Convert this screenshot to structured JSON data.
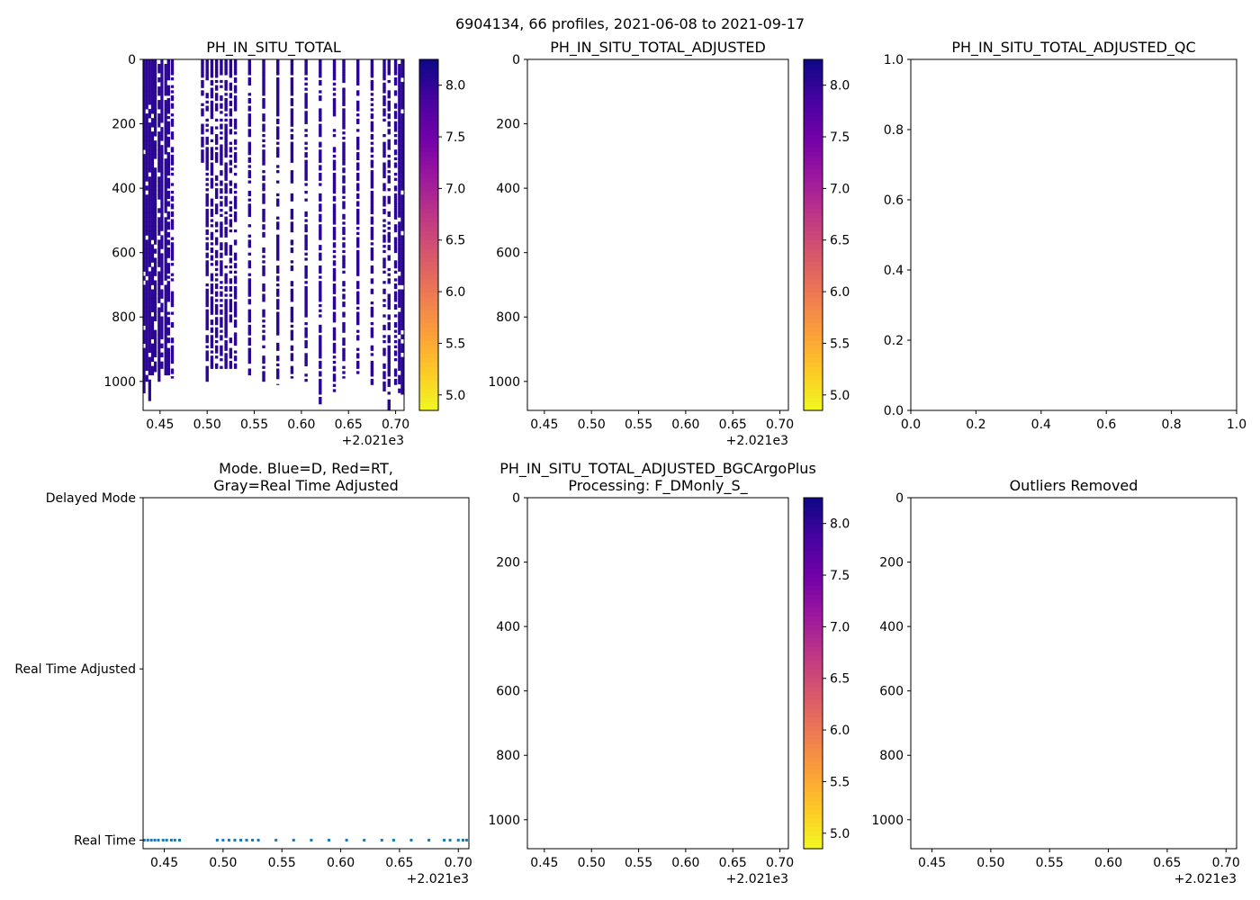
{
  "suptitle": "6904134, 66 profiles, 2021-06-08 to 2021-09-17",
  "colors": {
    "mode_points": "#1f77b4",
    "plasma_stops": [
      "#f0f921",
      "#fdca26",
      "#fb9f3a",
      "#ed7953",
      "#d8576b",
      "#bd3786",
      "#9c179e",
      "#7201a8",
      "#46039f",
      "#0d0887"
    ]
  },
  "chart_data": [
    {
      "id": "panel-ph-raw",
      "type": "heatmap",
      "title": "PH_IN_SITU_TOTAL",
      "xlim": [
        2021.432,
        2021.709
      ],
      "ylim": [
        1090,
        0
      ],
      "xticks": [
        "0.45",
        "0.50",
        "0.55",
        "0.60",
        "0.65",
        "0.70"
      ],
      "xtick_values": [
        2021.45,
        2021.5,
        2021.55,
        2021.6,
        2021.65,
        2021.7
      ],
      "yticks": [
        "0",
        "200",
        "400",
        "600",
        "800",
        "1000"
      ],
      "ytick_values": [
        0,
        200,
        400,
        600,
        800,
        1000
      ],
      "offset_label": "+2.021e3",
      "colorbar": {
        "vmin": 4.85,
        "vmax": 8.25,
        "ticks": [
          "5.0",
          "5.5",
          "6.0",
          "6.5",
          "7.0",
          "7.5",
          "8.0"
        ],
        "tick_values": [
          5.0,
          5.5,
          6.0,
          6.5,
          7.0,
          7.5,
          8.0
        ]
      },
      "profiles": [
        {
          "t": 2021.433,
          "max_depth": 1050,
          "value": 8.05,
          "dense": true
        },
        {
          "t": 2021.436,
          "max_depth": 1000,
          "value": 8.05,
          "dense": true
        },
        {
          "t": 2021.439,
          "max_depth": 1060,
          "value": 8.05,
          "dense": true
        },
        {
          "t": 2021.442,
          "max_depth": 980,
          "value": 8.05,
          "dense": true
        },
        {
          "t": 2021.445,
          "max_depth": 970,
          "value": 8.05,
          "dense": true
        },
        {
          "t": 2021.449,
          "max_depth": 1000,
          "value": 8.05,
          "dense": true
        },
        {
          "t": 2021.452,
          "max_depth": 960,
          "value": 8.05,
          "dense": true
        },
        {
          "t": 2021.456,
          "max_depth": 980,
          "value": 8.05,
          "dense": true
        },
        {
          "t": 2021.459,
          "max_depth": 980,
          "value": 8.05,
          "dense": false
        },
        {
          "t": 2021.463,
          "max_depth": 990,
          "value": 8.05,
          "dense": false
        },
        {
          "t": 2021.495,
          "max_depth": 340,
          "value": 8.05,
          "dense": false
        },
        {
          "t": 2021.5,
          "max_depth": 1000,
          "value": 8.05,
          "dense": false
        },
        {
          "t": 2021.505,
          "max_depth": 960,
          "value": 8.05,
          "dense": false
        },
        {
          "t": 2021.51,
          "max_depth": 960,
          "value": 8.05,
          "dense": false
        },
        {
          "t": 2021.515,
          "max_depth": 960,
          "value": 8.05,
          "dense": false
        },
        {
          "t": 2021.52,
          "max_depth": 960,
          "value": 8.05,
          "dense": false
        },
        {
          "t": 2021.525,
          "max_depth": 960,
          "value": 8.05,
          "dense": false
        },
        {
          "t": 2021.53,
          "max_depth": 960,
          "value": 8.05,
          "dense": false
        },
        {
          "t": 2021.545,
          "max_depth": 980,
          "value": 8.05,
          "dense": false
        },
        {
          "t": 2021.56,
          "max_depth": 1000,
          "value": 8.05,
          "dense": false
        },
        {
          "t": 2021.575,
          "max_depth": 1010,
          "value": 8.05,
          "dense": false
        },
        {
          "t": 2021.59,
          "max_depth": 990,
          "value": 8.05,
          "dense": false
        },
        {
          "t": 2021.605,
          "max_depth": 1000,
          "value": 8.05,
          "dense": false
        },
        {
          "t": 2021.62,
          "max_depth": 1070,
          "value": 8.05,
          "dense": false
        },
        {
          "t": 2021.635,
          "max_depth": 1040,
          "value": 8.05,
          "dense": false
        },
        {
          "t": 2021.645,
          "max_depth": 990,
          "value": 8.05,
          "dense": false
        },
        {
          "t": 2021.66,
          "max_depth": 980,
          "value": 8.05,
          "dense": false
        },
        {
          "t": 2021.675,
          "max_depth": 1010,
          "value": 8.05,
          "dense": false
        },
        {
          "t": 2021.688,
          "max_depth": 1030,
          "value": 8.05,
          "dense": false
        },
        {
          "t": 2021.693,
          "max_depth": 1090,
          "value": 8.05,
          "dense": false
        },
        {
          "t": 2021.7,
          "max_depth": 1010,
          "value": 8.05,
          "dense": false
        },
        {
          "t": 2021.704,
          "max_depth": 1035,
          "value": 8.05,
          "dense": true
        },
        {
          "t": 2021.707,
          "max_depth": 1040,
          "value": 8.05,
          "dense": true
        }
      ]
    },
    {
      "id": "panel-ph-adjusted",
      "type": "heatmap",
      "title": "PH_IN_SITU_TOTAL_ADJUSTED",
      "xlim": [
        2021.432,
        2021.709
      ],
      "ylim": [
        1090,
        0
      ],
      "xticks": [
        "0.45",
        "0.50",
        "0.55",
        "0.60",
        "0.65",
        "0.70"
      ],
      "xtick_values": [
        2021.45,
        2021.5,
        2021.55,
        2021.6,
        2021.65,
        2021.7
      ],
      "yticks": [
        "0",
        "200",
        "400",
        "600",
        "800",
        "1000"
      ],
      "ytick_values": [
        0,
        200,
        400,
        600,
        800,
        1000
      ],
      "offset_label": "+2.021e3",
      "colorbar": {
        "vmin": 4.85,
        "vmax": 8.25,
        "ticks": [
          "5.0",
          "5.5",
          "6.0",
          "6.5",
          "7.0",
          "7.5",
          "8.0"
        ],
        "tick_values": [
          5.0,
          5.5,
          6.0,
          6.5,
          7.0,
          7.5,
          8.0
        ]
      },
      "profiles": []
    },
    {
      "id": "panel-ph-adjusted-qc",
      "type": "scatter",
      "title": "PH_IN_SITU_TOTAL_ADJUSTED_QC",
      "xlim": [
        0,
        1
      ],
      "ylim": [
        0,
        1
      ],
      "xticks": [
        "0.0",
        "0.2",
        "0.4",
        "0.6",
        "0.8",
        "1.0"
      ],
      "xtick_values": [
        0,
        0.2,
        0.4,
        0.6,
        0.8,
        1.0
      ],
      "yticks": [
        "0.0",
        "0.2",
        "0.4",
        "0.6",
        "0.8",
        "1.0"
      ],
      "ytick_values": [
        0,
        0.2,
        0.4,
        0.6,
        0.8,
        1.0
      ],
      "points": []
    },
    {
      "id": "panel-mode",
      "type": "scatter",
      "title_lines": [
        "Mode. Blue=D, Red=RT,",
        "Gray=Real Time Adjusted"
      ],
      "xlim": [
        2021.432,
        2021.709
      ],
      "ylim": [
        -0.05,
        2.0
      ],
      "xticks": [
        "0.45",
        "0.50",
        "0.55",
        "0.60",
        "0.65",
        "0.70"
      ],
      "xtick_values": [
        2021.45,
        2021.5,
        2021.55,
        2021.6,
        2021.65,
        2021.7
      ],
      "ytick_labels": [
        "Delayed Mode",
        "Real Time Adjusted",
        "Real Time"
      ],
      "ytick_values": [
        2,
        1,
        0
      ],
      "offset_label": "+2.021e3",
      "mode_value": 0,
      "x": [
        2021.433,
        2021.436,
        2021.439,
        2021.442,
        2021.445,
        2021.449,
        2021.452,
        2021.456,
        2021.459,
        2021.463,
        2021.495,
        2021.5,
        2021.505,
        2021.51,
        2021.515,
        2021.52,
        2021.525,
        2021.53,
        2021.545,
        2021.56,
        2021.575,
        2021.59,
        2021.605,
        2021.62,
        2021.635,
        2021.645,
        2021.66,
        2021.675,
        2021.688,
        2021.693,
        2021.7,
        2021.704,
        2021.707
      ]
    },
    {
      "id": "panel-ph-bgcargoplus",
      "type": "heatmap",
      "title_lines": [
        "PH_IN_SITU_TOTAL_ADJUSTED_BGCArgoPlus",
        "Processing: F_DMonly_S_"
      ],
      "xlim": [
        2021.432,
        2021.709
      ],
      "ylim": [
        1090,
        0
      ],
      "xticks": [
        "0.45",
        "0.50",
        "0.55",
        "0.60",
        "0.65",
        "0.70"
      ],
      "xtick_values": [
        2021.45,
        2021.5,
        2021.55,
        2021.6,
        2021.65,
        2021.7
      ],
      "yticks": [
        "0",
        "200",
        "400",
        "600",
        "800",
        "1000"
      ],
      "ytick_values": [
        0,
        200,
        400,
        600,
        800,
        1000
      ],
      "offset_label": "+2.021e3",
      "colorbar": {
        "vmin": 4.85,
        "vmax": 8.25,
        "ticks": [
          "5.0",
          "5.5",
          "6.0",
          "6.5",
          "7.0",
          "7.5",
          "8.0"
        ],
        "tick_values": [
          5.0,
          5.5,
          6.0,
          6.5,
          7.0,
          7.5,
          8.0
        ]
      },
      "profiles": []
    },
    {
      "id": "panel-outliers",
      "type": "scatter",
      "title": "Outliers Removed",
      "xlim": [
        2021.432,
        2021.709
      ],
      "ylim": [
        1090,
        0
      ],
      "xticks": [
        "0.45",
        "0.50",
        "0.55",
        "0.60",
        "0.65",
        "0.70"
      ],
      "xtick_values": [
        2021.45,
        2021.5,
        2021.55,
        2021.6,
        2021.65,
        2021.7
      ],
      "yticks": [
        "0",
        "200",
        "400",
        "600",
        "800",
        "1000"
      ],
      "ytick_values": [
        0,
        200,
        400,
        600,
        800,
        1000
      ],
      "offset_label": "+2.021e3",
      "points": []
    }
  ]
}
